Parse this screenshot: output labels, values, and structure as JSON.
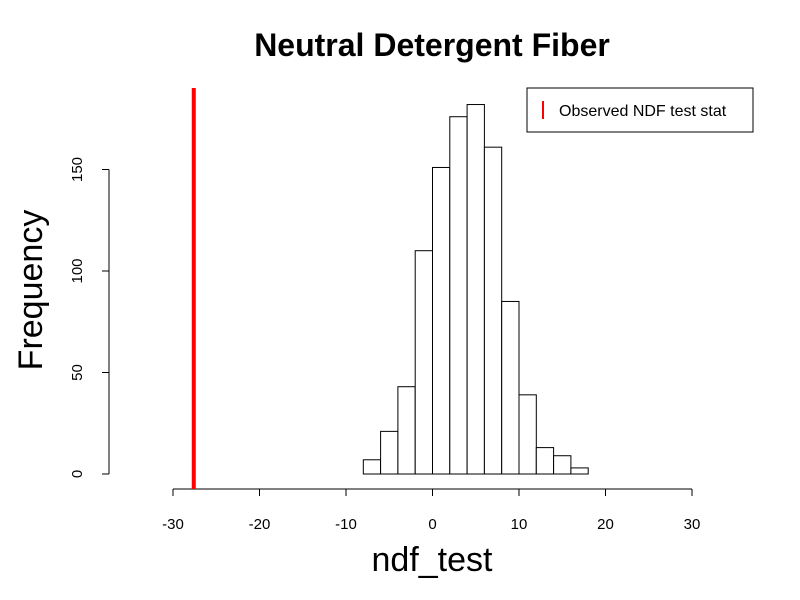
{
  "chart_data": {
    "type": "bar",
    "title": "Neutral Detergent Fiber",
    "xlabel": "ndf_test",
    "ylabel": "Frequency",
    "bin_width": 2,
    "bins": [
      {
        "x0": -8,
        "x1": -6,
        "count": 7
      },
      {
        "x0": -6,
        "x1": -4,
        "count": 21
      },
      {
        "x0": -4,
        "x1": -2,
        "count": 43
      },
      {
        "x0": -2,
        "x1": 0,
        "count": 110
      },
      {
        "x0": 0,
        "x1": 2,
        "count": 151
      },
      {
        "x0": 2,
        "x1": 4,
        "count": 176
      },
      {
        "x0": 4,
        "x1": 6,
        "count": 182
      },
      {
        "x0": 6,
        "x1": 8,
        "count": 161
      },
      {
        "x0": 8,
        "x1": 10,
        "count": 85
      },
      {
        "x0": 10,
        "x1": 12,
        "count": 39
      },
      {
        "x0": 12,
        "x1": 14,
        "count": 13
      },
      {
        "x0": 14,
        "x1": 16,
        "count": 9
      },
      {
        "x0": 16,
        "x1": 18,
        "count": 3
      }
    ],
    "xlim": [
      -30,
      30
    ],
    "ylim": [
      0,
      182
    ],
    "x_ticks": [
      -30,
      -20,
      -10,
      0,
      10,
      20,
      30
    ],
    "y_ticks": [
      0,
      50,
      100,
      150
    ],
    "reference_line": {
      "x": -27.6,
      "color": "#ff0000",
      "label": "Observed NDF test stat"
    },
    "legend": {
      "position": "top-right",
      "entries": [
        "Observed NDF test stat"
      ]
    }
  }
}
